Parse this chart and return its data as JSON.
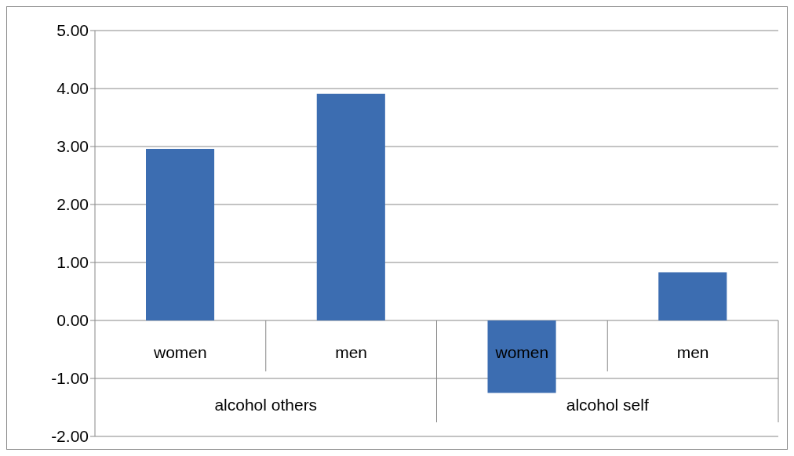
{
  "chart_data": {
    "type": "bar",
    "categories": [
      "women",
      "men",
      "women",
      "men"
    ],
    "values": [
      2.96,
      3.91,
      -1.25,
      0.83
    ],
    "color": "#3c6db1",
    "ylim": [
      -2,
      5
    ],
    "yticks": [
      {
        "value": -2,
        "label": "-2.00"
      },
      {
        "value": -1,
        "label": "-1.00"
      },
      {
        "value": 0,
        "label": "0.00"
      },
      {
        "value": 1,
        "label": "1.00"
      },
      {
        "value": 2,
        "label": "2.00"
      },
      {
        "value": 3,
        "label": "3.00"
      },
      {
        "value": 4,
        "label": "4.00"
      },
      {
        "value": 5,
        "label": "5.00"
      }
    ],
    "grid": "y",
    "annotations": [
      "alcohol others",
      "alcohol self"
    ]
  }
}
